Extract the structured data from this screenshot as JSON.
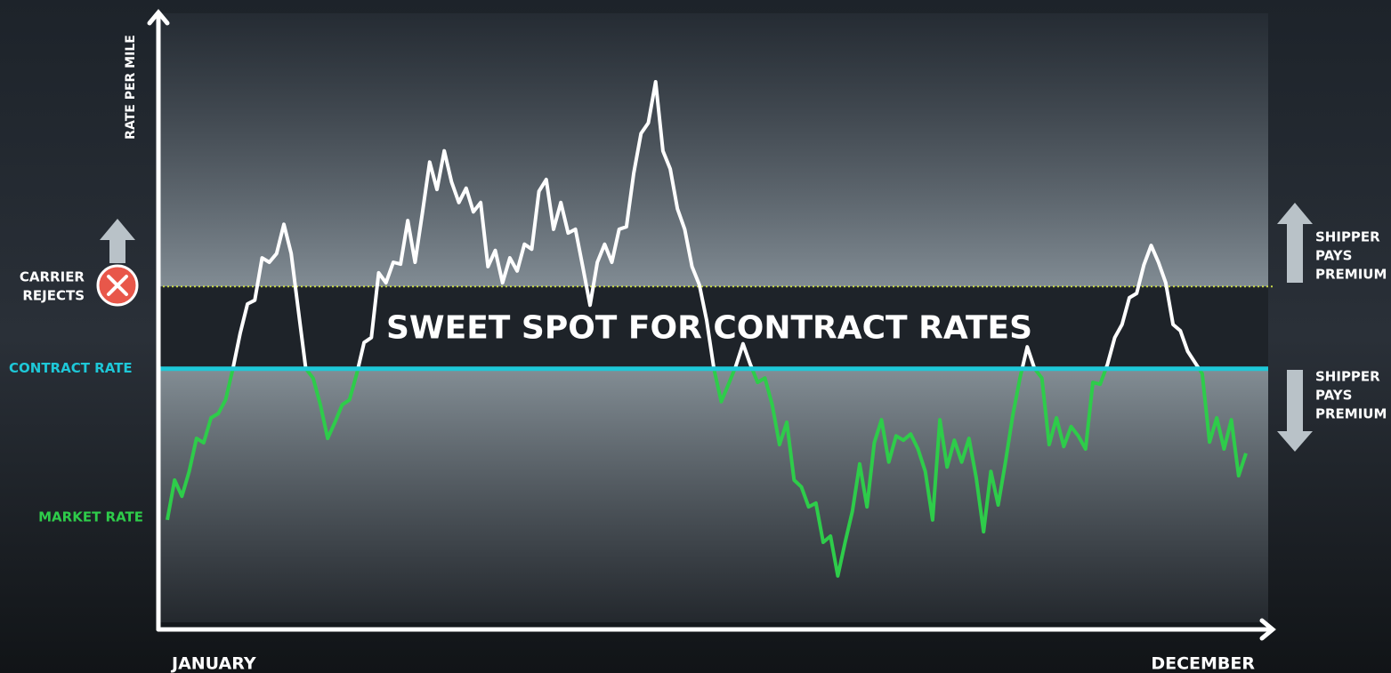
{
  "chart_data": {
    "type": "line",
    "y_axis_label": "RATE  PER MILE",
    "x_start_label": "JANUARY",
    "x_end_label": "DECEMBER",
    "ylim": [
      0,
      100
    ],
    "center_label": "SWEET SPOT FOR CONTRACT RATES",
    "contract_rate": {
      "name": "CONTRACT RATE",
      "value": 41.9,
      "color": "#1ec8d8"
    },
    "reject_threshold": {
      "value": 55.1,
      "color": "#c8d84a"
    },
    "carrier_rejects": [
      "CARRIER",
      "REJECTS"
    ],
    "upper_note": [
      "SHIPPER",
      "PAYS",
      "PREMIUM"
    ],
    "lower_note": [
      "SHIPPER",
      "PAYS",
      "PREMIUM"
    ],
    "above_color": "#ffffff",
    "series": [
      {
        "name": "MARKET RATE",
        "color": "#2ecc4a",
        "values": [
          17.6,
          24,
          21.4,
          25.4,
          30.7,
          30,
          34,
          34.7,
          36.9,
          41.9,
          47.6,
          52.3,
          52.9,
          59.7,
          59,
          60.4,
          65.1,
          60.4,
          51.1,
          41.9,
          40.4,
          36.1,
          30.7,
          33.3,
          36.1,
          36.9,
          41.1,
          46.1,
          46.9,
          57.3,
          55.7,
          59,
          58.7,
          65.7,
          59,
          66.9,
          75.1,
          70.7,
          76.9,
          71.9,
          68.6,
          70.9,
          67.1,
          68.6,
          58.3,
          60.9,
          55.7,
          59.7,
          57.6,
          61.9,
          61.1,
          70.4,
          72.3,
          64.3,
          68.6,
          63.7,
          64.3,
          58.3,
          52.1,
          59,
          61.9,
          59,
          64.3,
          64.7,
          73.3,
          79.7,
          81.4,
          88,
          76.9,
          74,
          67.6,
          64.3,
          58.3,
          55.4,
          49.7,
          41.9,
          36.6,
          39.4,
          42.3,
          45.9,
          42.6,
          39.7,
          40.4,
          36.1,
          29.7,
          33.3,
          24,
          22.9,
          19.7,
          20.3,
          14,
          15,
          8.6,
          14,
          19,
          26.6,
          19.7,
          30,
          33.7,
          26.9,
          31.1,
          30.4,
          31.4,
          29,
          25.4,
          17.6,
          33.7,
          26.1,
          30.4,
          26.9,
          30.7,
          24.3,
          15.7,
          25.4,
          20,
          26.9,
          34.3,
          40.4,
          45.4,
          41.9,
          40.4,
          29.7,
          34,
          29.4,
          32.6,
          31.1,
          29,
          39.7,
          39.4,
          42.6,
          46.9,
          49,
          53.3,
          54,
          58.6,
          61.7,
          59,
          55.7,
          49,
          48,
          44.7,
          42.9,
          41.1,
          30.1,
          34,
          29,
          33.7,
          24.7,
          28.3
        ]
      }
    ]
  }
}
